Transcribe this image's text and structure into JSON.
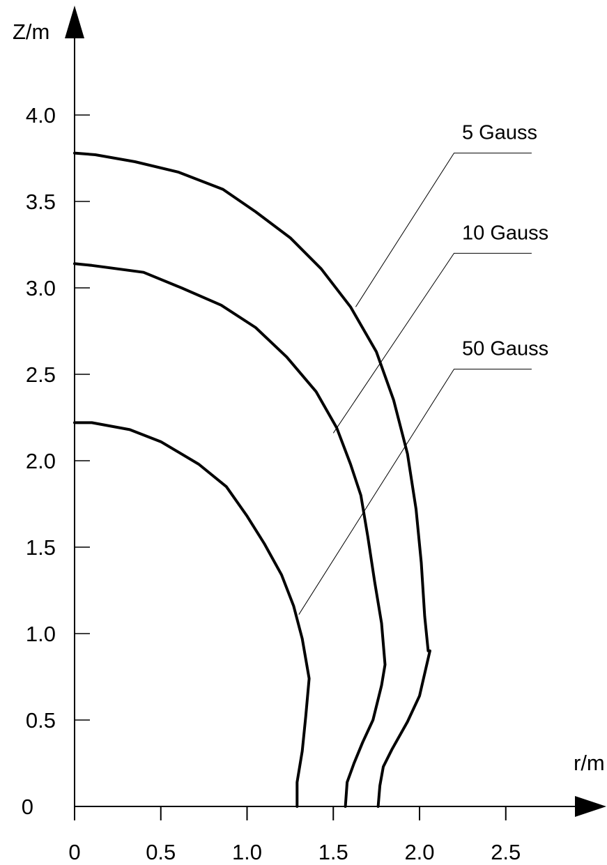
{
  "chart_data": {
    "type": "line",
    "xlabel": "r/m",
    "ylabel": "Z/m",
    "xlim": [
      0,
      2.9
    ],
    "ylim": [
      0,
      4.5
    ],
    "x_ticks": [
      0,
      0.5,
      1.0,
      1.5,
      2.0,
      2.5
    ],
    "x_tick_labels": [
      "0",
      "0.5",
      "1.0",
      "1.5",
      "2.0",
      "2.5"
    ],
    "y_ticks": [
      0,
      0.5,
      1.0,
      1.5,
      2.0,
      2.5,
      3.0,
      3.5,
      4.0
    ],
    "y_tick_labels": [
      "0",
      "0.5",
      "1.0",
      "1.5",
      "2.0",
      "2.5",
      "3.0",
      "3.5",
      "4.0"
    ],
    "grid": false,
    "line_color": "#000000",
    "series": [
      {
        "name": "5 Gauss",
        "label_anchor": [
          1.63,
          2.89
        ],
        "label_corner": [
          2.2,
          3.78
        ],
        "label_line_end": [
          2.65,
          3.78
        ],
        "x": [
          0,
          0.12,
          0.35,
          0.6,
          0.86,
          1.05,
          1.25,
          1.43,
          1.6,
          1.75,
          1.85,
          1.93,
          1.98,
          2.01,
          2.03,
          2.05,
          2.06,
          2.0,
          1.93,
          1.84,
          1.79,
          1.77,
          1.76
        ],
        "y": [
          3.78,
          3.77,
          3.73,
          3.67,
          3.57,
          3.44,
          3.29,
          3.11,
          2.89,
          2.63,
          2.35,
          2.04,
          1.72,
          1.41,
          1.1,
          0.9,
          0.9,
          0.64,
          0.49,
          0.33,
          0.23,
          0.12,
          0
        ]
      },
      {
        "name": "10 Gauss",
        "label_anchor": [
          1.5,
          2.16
        ],
        "label_corner": [
          2.2,
          3.2
        ],
        "label_line_end": [
          2.65,
          3.2
        ],
        "x": [
          0,
          0.1,
          0.4,
          0.62,
          0.85,
          1.05,
          1.23,
          1.4,
          1.52,
          1.6,
          1.66,
          1.7,
          1.74,
          1.78,
          1.8,
          1.78,
          1.73,
          1.67,
          1.62,
          1.58,
          1.57
        ],
        "y": [
          3.14,
          3.13,
          3.09,
          3.0,
          2.9,
          2.77,
          2.6,
          2.4,
          2.19,
          1.98,
          1.8,
          1.56,
          1.3,
          1.06,
          0.82,
          0.7,
          0.5,
          0.37,
          0.25,
          0.14,
          0
        ]
      },
      {
        "name": "50 Gauss",
        "label_anchor": [
          1.3,
          1.11
        ],
        "label_corner": [
          2.2,
          2.53
        ],
        "label_line_end": [
          2.65,
          2.53
        ],
        "x": [
          0,
          0.1,
          0.32,
          0.5,
          0.72,
          0.88,
          1.0,
          1.1,
          1.2,
          1.27,
          1.32,
          1.36,
          1.34,
          1.32,
          1.29,
          1.29
        ],
        "y": [
          2.22,
          2.22,
          2.18,
          2.11,
          1.98,
          1.85,
          1.68,
          1.52,
          1.34,
          1.16,
          0.97,
          0.74,
          0.52,
          0.32,
          0.14,
          0
        ]
      }
    ]
  }
}
